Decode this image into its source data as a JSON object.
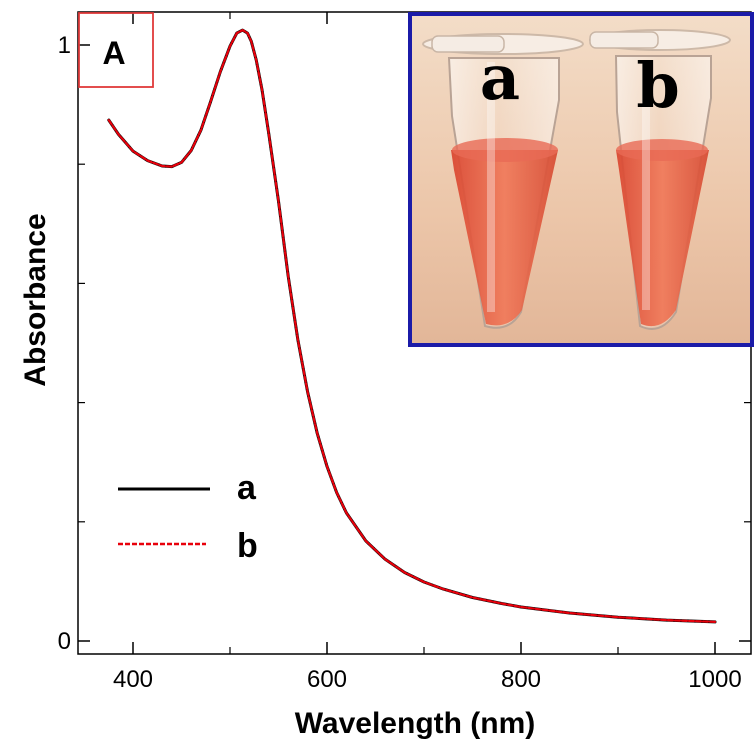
{
  "panel_label": "A",
  "chart_data": {
    "type": "line",
    "title": "",
    "xlabel": "Wavelength (nm)",
    "ylabel": "Absorbance",
    "xlim": [
      340,
      1040
    ],
    "ylim": [
      0,
      1.03
    ],
    "xticks": [
      400,
      600,
      800,
      1000
    ],
    "yticks": [
      0,
      1
    ],
    "ytick_minor": [
      0.2,
      0.4,
      0.6,
      0.8
    ],
    "grid": false,
    "legend": {
      "placement": "lower-left",
      "entries": [
        "a",
        "b"
      ]
    },
    "series": [
      {
        "name": "a",
        "color": "#000000",
        "style": "solid",
        "x": [
          375,
          385,
          400,
          415,
          430,
          440,
          450,
          460,
          470,
          480,
          490,
          500,
          507,
          513,
          518,
          522,
          527,
          533,
          540,
          550,
          560,
          570,
          580,
          590,
          600,
          610,
          620,
          640,
          660,
          680,
          700,
          720,
          750,
          780,
          800,
          850,
          900,
          950,
          1000
        ],
        "y": [
          0.874,
          0.85,
          0.822,
          0.806,
          0.797,
          0.796,
          0.803,
          0.823,
          0.857,
          0.905,
          0.955,
          0.998,
          1.02,
          1.025,
          1.02,
          1.006,
          0.975,
          0.925,
          0.851,
          0.738,
          0.612,
          0.505,
          0.418,
          0.348,
          0.293,
          0.249,
          0.215,
          0.168,
          0.137,
          0.115,
          0.099,
          0.087,
          0.073,
          0.063,
          0.057,
          0.047,
          0.04,
          0.035,
          0.032
        ]
      },
      {
        "name": "b",
        "color": "#e8000b",
        "style": "dashed",
        "x": [
          375,
          385,
          400,
          415,
          430,
          440,
          450,
          460,
          470,
          480,
          490,
          500,
          507,
          513,
          518,
          522,
          527,
          533,
          540,
          550,
          560,
          570,
          580,
          590,
          600,
          610,
          620,
          640,
          660,
          680,
          700,
          720,
          750,
          780,
          800,
          850,
          900,
          950,
          1000
        ],
        "y": [
          0.874,
          0.85,
          0.822,
          0.806,
          0.797,
          0.796,
          0.803,
          0.823,
          0.857,
          0.905,
          0.955,
          0.998,
          1.02,
          1.025,
          1.02,
          1.006,
          0.975,
          0.925,
          0.851,
          0.738,
          0.612,
          0.505,
          0.418,
          0.348,
          0.293,
          0.249,
          0.215,
          0.168,
          0.137,
          0.115,
          0.099,
          0.087,
          0.073,
          0.063,
          0.057,
          0.047,
          0.04,
          0.035,
          0.032
        ]
      }
    ]
  },
  "inset": {
    "frame_color": "#1b1ba8",
    "background_color": "#e9c4a8",
    "liquid_color": "#e8553d",
    "tube_labels": [
      "a",
      "b"
    ]
  }
}
